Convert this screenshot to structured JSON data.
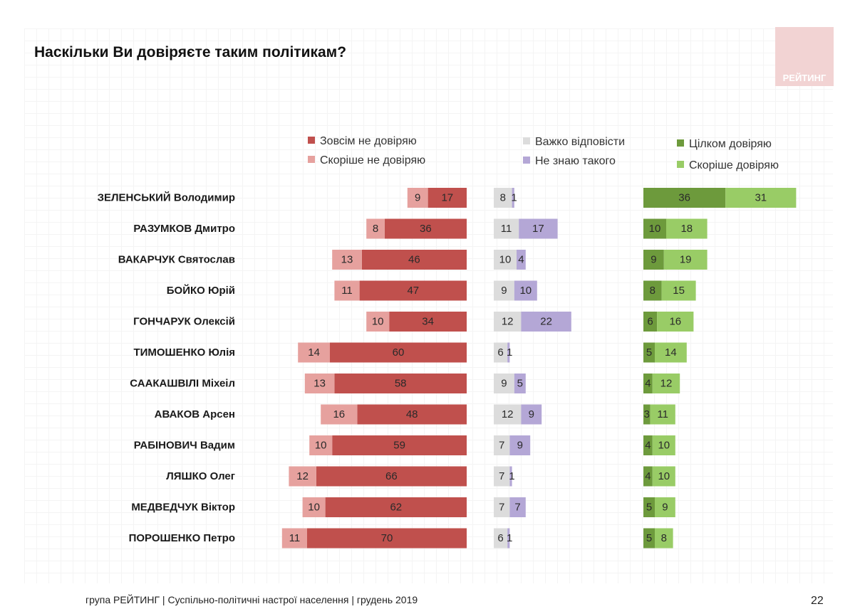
{
  "title": "Наскільки Ви довіряєте таким політикам?",
  "logo_text": "РЕЙТИНГ",
  "footer": "група РЕЙТИНГ | Суспільно-політичні настрої населення  | грудень 2019",
  "page_number": "22",
  "colors": {
    "fully_distrust": "#c0504d",
    "rather_distrust": "#e6a19e",
    "hard_to_say": "#dcdcdc",
    "dont_know": "#b4a7d6",
    "fully_trust": "#6d9a3c",
    "rather_trust": "#99cc66"
  },
  "chart_data": {
    "type": "bar",
    "orientation": "horizontal-diverging",
    "title": "Наскільки Ви довіряєте таким політикам?",
    "legend": [
      "Зовсім не довіряю",
      "Скоріше не довіряю",
      "Важко відповісти",
      "Не знаю такого",
      "Цілком довіряю",
      "Скоріше довіряю"
    ],
    "categories": [
      "ЗЕЛЕНСЬКИЙ Володимир",
      "РАЗУМКОВ Дмитро",
      "ВАКАРЧУК Святослав",
      "БОЙКО Юрій",
      "ГОНЧАРУК Олексій",
      "ТИМОШЕНКО Юлія",
      "СААКАШВІЛІ Міхеіл",
      "АВАКОВ Арсен",
      "РАБІНОВИЧ Вадим",
      "ЛЯШКО Олег",
      "МЕДВЕДЧУК Віктор",
      "ПОРОШЕНКО Петро"
    ],
    "series": [
      {
        "name": "Зовсім не довіряю",
        "values": [
          17,
          36,
          46,
          47,
          34,
          60,
          58,
          48,
          59,
          66,
          62,
          70
        ]
      },
      {
        "name": "Скоріше не довіряю",
        "values": [
          9,
          8,
          13,
          11,
          10,
          14,
          13,
          16,
          10,
          12,
          10,
          11
        ]
      },
      {
        "name": "Важко відповісти",
        "values": [
          8,
          11,
          10,
          9,
          12,
          6,
          9,
          12,
          7,
          7,
          7,
          6
        ]
      },
      {
        "name": "Не знаю такого",
        "values": [
          1,
          17,
          4,
          10,
          22,
          1,
          5,
          9,
          9,
          1,
          7,
          1
        ]
      },
      {
        "name": "Цілком довіряю",
        "values": [
          36,
          10,
          9,
          8,
          6,
          5,
          4,
          3,
          4,
          4,
          5,
          5
        ]
      },
      {
        "name": "Скоріше довіряю",
        "values": [
          31,
          18,
          19,
          15,
          16,
          14,
          12,
          11,
          10,
          10,
          9,
          8
        ]
      }
    ]
  }
}
